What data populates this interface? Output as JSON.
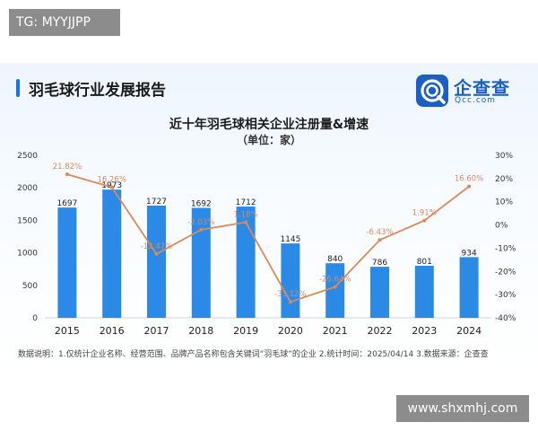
{
  "watermark_top": "TG: MYYJJPP",
  "watermark_bottom": "www.shxmhj.com",
  "report_title": "羽毛球行业发展报告",
  "brand": {
    "name": "企查查",
    "sub": "Qcc.com",
    "color": "#1b5fc4"
  },
  "footnote": "数据说明：1.仅统计企业名称、经营范围、品牌产品名称包含关键词“羽毛球”的企业  2.统计时间：2025/04/14  3.数据来源：企查查",
  "colors": {
    "bar": "#2b8ae6",
    "line": "#d9895a",
    "accent": "#1677d9"
  },
  "chart_data": {
    "type": "bar",
    "title": "近十年羽毛球相关企业注册量&增速",
    "subtitle": "（单位：家）",
    "categories": [
      "2015",
      "2016",
      "2017",
      "2018",
      "2019",
      "2020",
      "2021",
      "2022",
      "2023",
      "2024"
    ],
    "series": [
      {
        "type": "bar",
        "axis": "left",
        "values": [
          1697,
          1973,
          1727,
          1692,
          1712,
          1145,
          840,
          786,
          801,
          934
        ],
        "labels": [
          "1697",
          "1973",
          "1727",
          "1692",
          "1712",
          "1145",
          "840",
          "786",
          "801",
          "934"
        ]
      },
      {
        "type": "line",
        "axis": "right",
        "values": [
          21.82,
          16.26,
          -12.47,
          -2.03,
          1.18,
          -33.12,
          -26.64,
          -6.43,
          1.91,
          16.6
        ],
        "labels": [
          "21.82%",
          "16.26%",
          "-12.47%",
          "-2.03%",
          "1.18%",
          "-33.12%",
          "-26.64%",
          "-6.43%",
          "1.91%",
          "16.60%"
        ]
      }
    ],
    "y_left": {
      "ylim": [
        0,
        2500
      ],
      "ticks": [
        "0",
        "500",
        "1000",
        "1500",
        "2000",
        "2500"
      ]
    },
    "y_right": {
      "ylim": [
        -40,
        30
      ],
      "ticks": [
        "-40%",
        "-30%",
        "-20%",
        "-10%",
        "0%",
        "10%",
        "20%",
        "30%"
      ]
    },
    "grid": false,
    "legend": "none"
  }
}
